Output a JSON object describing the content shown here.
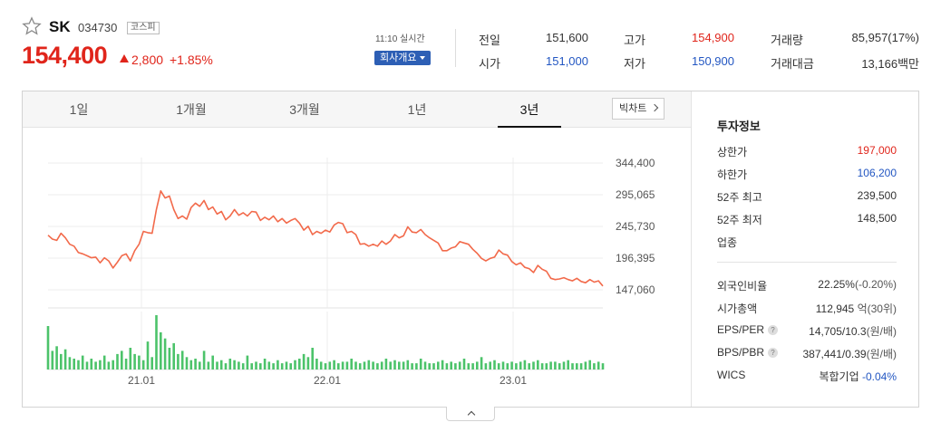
{
  "stock": {
    "name": "SK",
    "code": "034730",
    "market": "코스피",
    "price": "154,400",
    "change": "2,800",
    "change_pct": "+1.85%",
    "realtime_time": "11:10 실시간",
    "company_button": "회사개요"
  },
  "quote": {
    "prev_label": "전일",
    "prev": "151,600",
    "open_label": "시가",
    "open": "151,000",
    "high_label": "고가",
    "high": "154,900",
    "low_label": "저가",
    "low": "150,900",
    "volume_label": "거래량",
    "volume": "85,957(17%)",
    "amount_label": "거래대금",
    "amount": "13,166백만"
  },
  "tabs": [
    {
      "label": "1일"
    },
    {
      "label": "1개월"
    },
    {
      "label": "3개월"
    },
    {
      "label": "1년"
    },
    {
      "label": "3년",
      "active": true
    }
  ],
  "bigchart_label": "빅차트",
  "chart_data": {
    "type": "line",
    "title": "",
    "xlabel": "",
    "ylabel": "",
    "x_ticks": [
      "21.01",
      "22.01",
      "23.01"
    ],
    "y_ticks": [
      147060,
      196395,
      245730,
      295065,
      344400
    ],
    "y_tick_labels": [
      "147,060",
      "196,395",
      "245,730",
      "295,065",
      "344,400"
    ],
    "ylim": [
      147060,
      344400
    ],
    "grid": true,
    "colors": {
      "line": "#f26a4b",
      "volume": "#4cc36a"
    },
    "series": [
      {
        "values": [
          232000,
          226000,
          224000,
          235000,
          228000,
          218000,
          215000,
          205000,
          203000,
          200000,
          197000,
          198000,
          189000,
          197000,
          192000,
          181000,
          190000,
          200000,
          203000,
          192000,
          208000,
          218000,
          238000,
          236000,
          235000,
          272000,
          301000,
          290000,
          293000,
          272000,
          258000,
          262000,
          257000,
          275000,
          282000,
          277000,
          286000,
          272000,
          276000,
          265000,
          269000,
          256000,
          262000,
          272000,
          263000,
          267000,
          262000,
          269000,
          268000,
          255000,
          260000,
          256000,
          262000,
          253000,
          258000,
          251000,
          255000,
          258000,
          251000,
          240000,
          246000,
          233000,
          238000,
          235000,
          240000,
          237000,
          248000,
          252000,
          250000,
          236000,
          238000,
          233000,
          218000,
          219000,
          215000,
          218000,
          215000,
          223000,
          218000,
          223000,
          233000,
          228000,
          231000,
          245000,
          237000,
          236000,
          241000,
          233000,
          228000,
          224000,
          220000,
          208000,
          208000,
          212000,
          214000,
          222000,
          220000,
          218000,
          210000,
          204000,
          196000,
          192000,
          196000,
          198000,
          209000,
          203000,
          201000,
          191000,
          186000,
          189000,
          182000,
          180000,
          174000,
          185000,
          179000,
          176000,
          165000,
          163000,
          164000,
          166000,
          163000,
          161000,
          165000,
          160000,
          158000,
          163000,
          159000,
          161000,
          153000
        ],
        "volume": [
          28,
          12,
          15,
          10,
          13,
          8,
          7,
          6,
          9,
          5,
          7,
          5,
          6,
          9,
          5,
          6,
          10,
          12,
          7,
          14,
          10,
          9,
          6,
          18,
          8,
          35,
          24,
          20,
          14,
          17,
          10,
          12,
          8,
          6,
          7,
          5,
          12,
          5,
          9,
          5,
          6,
          4,
          7,
          6,
          5,
          4,
          9,
          4,
          5,
          4,
          7,
          5,
          4,
          6,
          4,
          5,
          4,
          6,
          7,
          10,
          8,
          14,
          7,
          5,
          4,
          5,
          6,
          4,
          5,
          5,
          7,
          5,
          4,
          5,
          6,
          5,
          4,
          5,
          7,
          5,
          6,
          5,
          5,
          6,
          4,
          4,
          7,
          5,
          4,
          4,
          5,
          6,
          4,
          5,
          4,
          5,
          7,
          4,
          4,
          5,
          8,
          4,
          5,
          6,
          4,
          5,
          4,
          5,
          4,
          5,
          6,
          4,
          5,
          6,
          4,
          4,
          5,
          5,
          4,
          5,
          6,
          4,
          4,
          4,
          5,
          6,
          4,
          5,
          4
        ]
      }
    ]
  },
  "info": {
    "title": "투자정보",
    "upper_limit_label": "상한가",
    "upper_limit": "197,000",
    "lower_limit_label": "하한가",
    "lower_limit": "106,200",
    "high52_label": "52주 최고",
    "high52": "239,500",
    "low52_label": "52주 최저",
    "low52": "148,500",
    "sector_label": "업종",
    "foreign_label": "외국인비율",
    "foreign": "22.25%",
    "foreign_chg": "(-0.20%)",
    "mcap_label": "시가총액",
    "mcap": "112,945",
    "mcap_unit": "억(30위)",
    "eps_label": "EPS/PER",
    "eps": "14,705/10.3",
    "eps_unit": "(원/배)",
    "bps_label": "BPS/PBR",
    "bps": "387,441/0.39",
    "bps_unit": "(원/배)",
    "wics_label": "WICS",
    "wics": "복합기업",
    "wics_chg": "-0.04%"
  }
}
